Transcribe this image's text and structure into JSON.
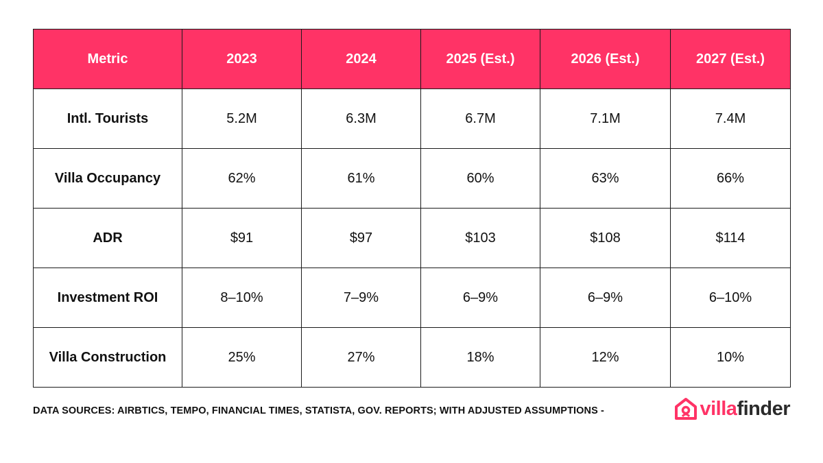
{
  "table": {
    "headers": [
      "Metric",
      "2023",
      "2024",
      "2025 (Est.)",
      "2026 (Est.)",
      "2027 (Est.)"
    ],
    "rows": [
      {
        "metric": "Intl. Tourists",
        "values": [
          "5.2M",
          "6.3M",
          "6.7M",
          "7.1M",
          "7.4M"
        ]
      },
      {
        "metric": "Villa Occupancy",
        "values": [
          "62%",
          "61%",
          "60%",
          "63%",
          "66%"
        ]
      },
      {
        "metric": "ADR",
        "values": [
          "$91",
          "$97",
          "$103",
          "$108",
          "$114"
        ]
      },
      {
        "metric": "Investment ROI",
        "values": [
          "8–10%",
          "7–9%",
          "6–9%",
          "6–9%",
          "6–10%"
        ]
      },
      {
        "metric": "Villa Construction",
        "values": [
          "25%",
          "27%",
          "18%",
          "12%",
          "10%"
        ]
      }
    ]
  },
  "footer": {
    "sources": "DATA SOURCES: AIRBTICS, TEMPO, FINANCIAL TIMES, STATISTA, GOV. REPORTS; WITH ADJUSTED ASSUMPTIONS -"
  },
  "logo": {
    "icon": "house-logo-icon",
    "word_a": "villa",
    "word_b": "finder"
  },
  "colors": {
    "header_bg": "#ff3366",
    "header_text": "#ffffff",
    "border": "#1a1a1a",
    "brand": "#ff3366"
  }
}
